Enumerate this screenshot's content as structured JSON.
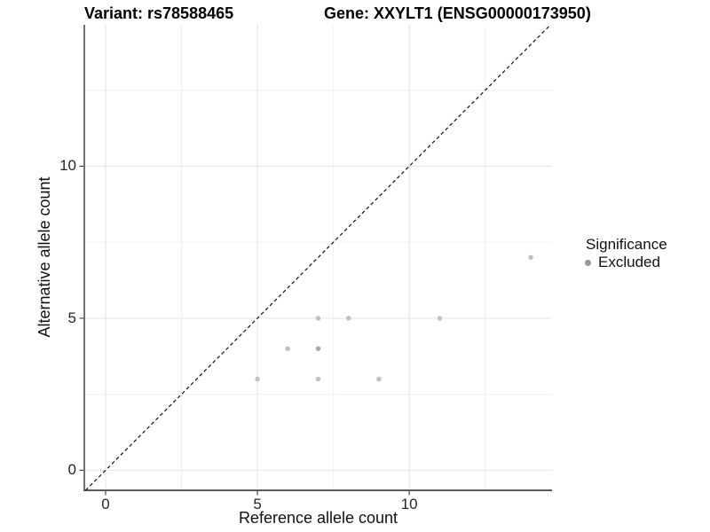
{
  "header": {
    "title_left": "Variant: rs78588465",
    "title_right": "Gene: XXYLT1 (ENSG00000173950)"
  },
  "chart_data": {
    "type": "scatter",
    "xlabel": "Reference allele count",
    "ylabel": "Alternative allele count",
    "xlim": [
      -0.7,
      14.7
    ],
    "ylim": [
      -0.66,
      14.65
    ],
    "x_major_ticks": [
      0,
      5,
      10
    ],
    "y_major_ticks": [
      0,
      5,
      10
    ],
    "x_minor_gridlines": [
      2.5,
      7.5,
      12.5
    ],
    "y_minor_gridlines": [
      2.5,
      7.5,
      12.5
    ],
    "grid": true,
    "legend_position": "right",
    "identity_line": {
      "style": "dashed",
      "slope": 1,
      "intercept": 0
    },
    "points": [
      {
        "x": 5,
        "y": 3
      },
      {
        "x": 6,
        "y": 4
      },
      {
        "x": 7,
        "y": 3
      },
      {
        "x": 7,
        "y": 4,
        "overlap": 2
      },
      {
        "x": 7,
        "y": 5
      },
      {
        "x": 8,
        "y": 5
      },
      {
        "x": 9,
        "y": 3
      },
      {
        "x": 11,
        "y": 5
      },
      {
        "x": 14,
        "y": 7
      }
    ],
    "legend": {
      "title": "Significance",
      "items": [
        {
          "label": "Excluded",
          "color": "#979797"
        }
      ]
    },
    "colors": {
      "point": "#c0c0c0",
      "point_overlap": "#a5a5a5",
      "grid_major": "#e4e4e4",
      "grid_minor": "#f0f0f0",
      "axis_line_left": "#262626",
      "axis_line_bottom": "#595959",
      "tick_mark": "#333333",
      "identity_line": "#111111",
      "background": "#ffffff"
    }
  }
}
